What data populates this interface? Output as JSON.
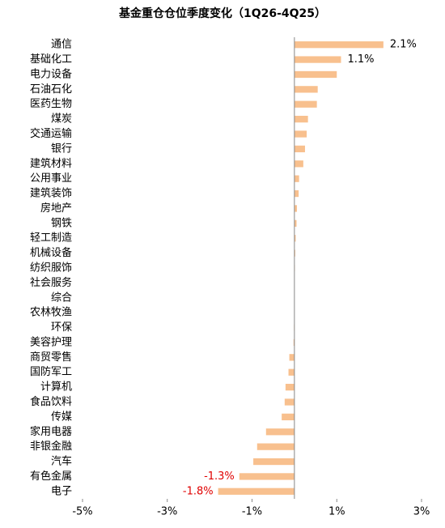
{
  "chart_data": {
    "type": "hbar",
    "title": "基金重仓仓位季度变化（1Q26-4Q25）",
    "categories": [
      "通信",
      "基础化工",
      "电力设备",
      "石油石化",
      "医药生物",
      "煤炭",
      "交通运输",
      "银行",
      "建筑材料",
      "公用事业",
      "建筑装饰",
      "房地产",
      "钢铁",
      "轻工制造",
      "机械设备",
      "纺织服饰",
      "社会服务",
      "综合",
      "农林牧渔",
      "环保",
      "美容护理",
      "商贸零售",
      "国防军工",
      "计算机",
      "食品饮料",
      "传媒",
      "家用电器",
      "非银金融",
      "汽车",
      "有色金属",
      "电子"
    ],
    "values": [
      2.1,
      1.1,
      1.0,
      0.55,
      0.53,
      0.32,
      0.29,
      0.25,
      0.21,
      0.11,
      0.1,
      0.06,
      0.05,
      0.03,
      0.02,
      0.01,
      0,
      0,
      0,
      -0.01,
      -0.02,
      -0.12,
      -0.14,
      -0.21,
      -0.23,
      -0.3,
      -0.67,
      -0.88,
      -0.97,
      -1.3,
      -1.8
    ],
    "value_labels": [
      "2.1%",
      "1.1%",
      null,
      null,
      null,
      null,
      null,
      null,
      null,
      null,
      null,
      null,
      null,
      null,
      null,
      null,
      null,
      null,
      null,
      null,
      null,
      null,
      null,
      null,
      null,
      null,
      null,
      null,
      null,
      "-1.3%",
      "-1.8%"
    ],
    "color": "#f8c08e",
    "xlim": [
      -5,
      3
    ],
    "xticks": [
      {
        "value": -5,
        "label": "-5%"
      },
      {
        "value": -3,
        "label": "-3%"
      },
      {
        "value": -1,
        "label": "-1%"
      },
      {
        "value": 1,
        "label": "1%"
      },
      {
        "value": 3,
        "label": "3%"
      }
    ]
  }
}
